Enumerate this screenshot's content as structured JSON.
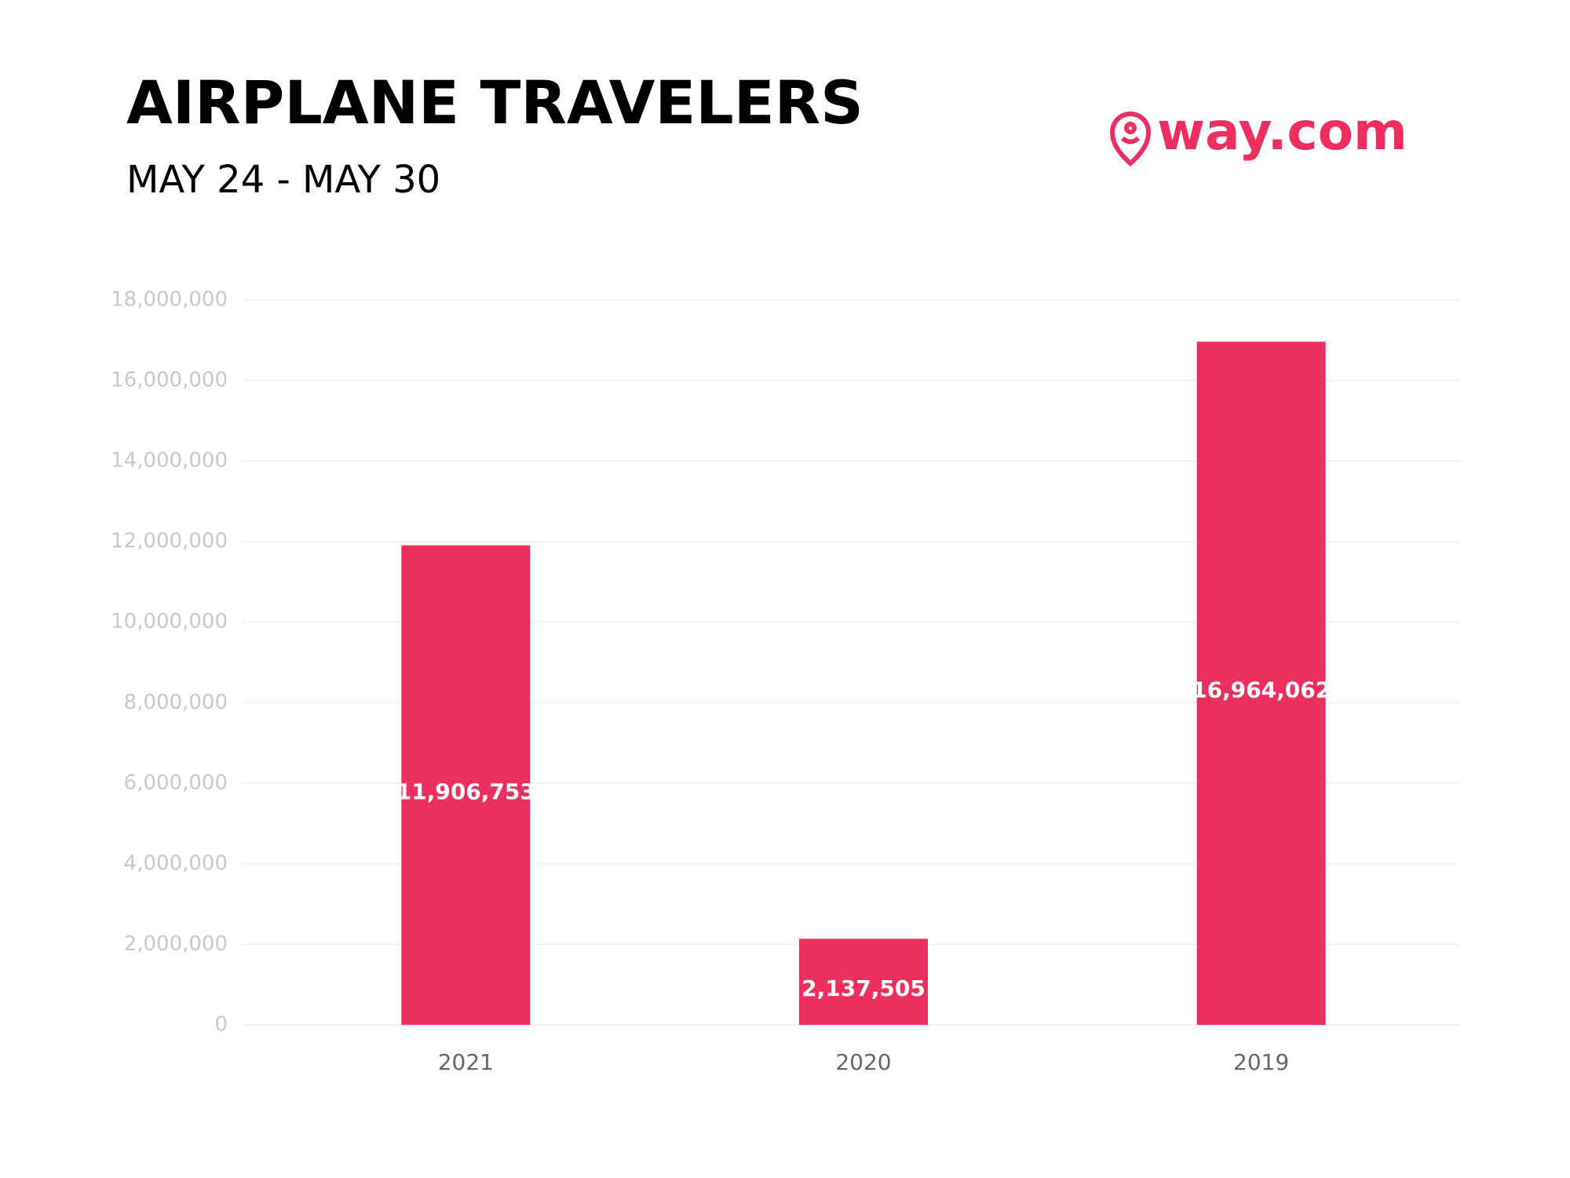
{
  "chart_data": {
    "type": "bar",
    "title": "AIRPLANE TRAVELERS",
    "subtitle": "MAY 24 - MAY 30",
    "logo": "way.com",
    "categories": [
      "2021",
      "2020",
      "2019"
    ],
    "values": [
      11906753,
      2137505,
      16964062
    ],
    "value_labels": [
      "11,906,753",
      "2,137,505",
      "16,964,062"
    ],
    "color": "#eb3060",
    "ylim": [
      0,
      18000000
    ],
    "yticks": [
      0,
      {
        "value": 2000000,
        "label": "2,000,000"
      },
      {
        "value": 4000000,
        "label": "4,000,000"
      },
      {
        "value": 6000000,
        "label": "6,000,000"
      },
      {
        "value": 8000000,
        "label": "8,000,000"
      },
      {
        "value": 10000000,
        "label": "10,000,000"
      },
      {
        "value": 12000000,
        "label": "12,000,000"
      },
      {
        "value": 14000000,
        "label": "14,000,000"
      },
      {
        "value": 16000000,
        "label": "16,000,000"
      },
      {
        "value": 18000000,
        "label": "18,000,000"
      }
    ],
    "grid": true
  }
}
